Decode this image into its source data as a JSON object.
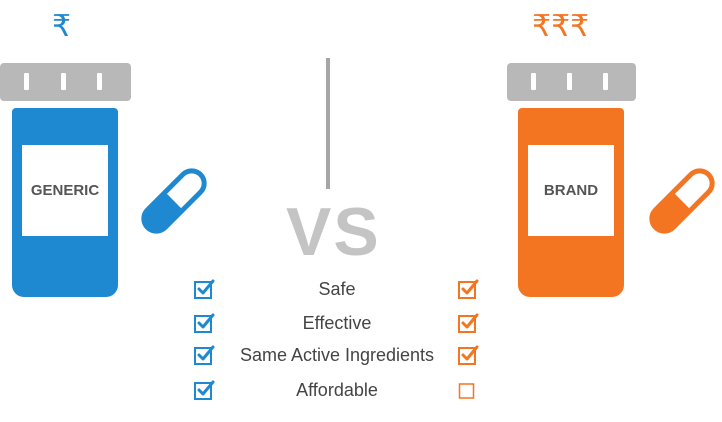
{
  "colors": {
    "generic": "#1e88d0",
    "brand": "#f47521",
    "cap": "#b8b8b8",
    "vs": "#c4c4c4",
    "divider": "#a6a6a6"
  },
  "generic": {
    "price": "₹",
    "label": "GENERIC"
  },
  "brand": {
    "price": "₹₹₹",
    "label": "BRAND"
  },
  "vs_text": "VS",
  "comparison": [
    {
      "label": "Safe",
      "generic": true,
      "brand": true
    },
    {
      "label": "Effective",
      "generic": true,
      "brand": true
    },
    {
      "label": "Same Active Ingredients",
      "generic": true,
      "brand": true
    },
    {
      "label": "Affordable",
      "generic": true,
      "brand": false
    }
  ]
}
